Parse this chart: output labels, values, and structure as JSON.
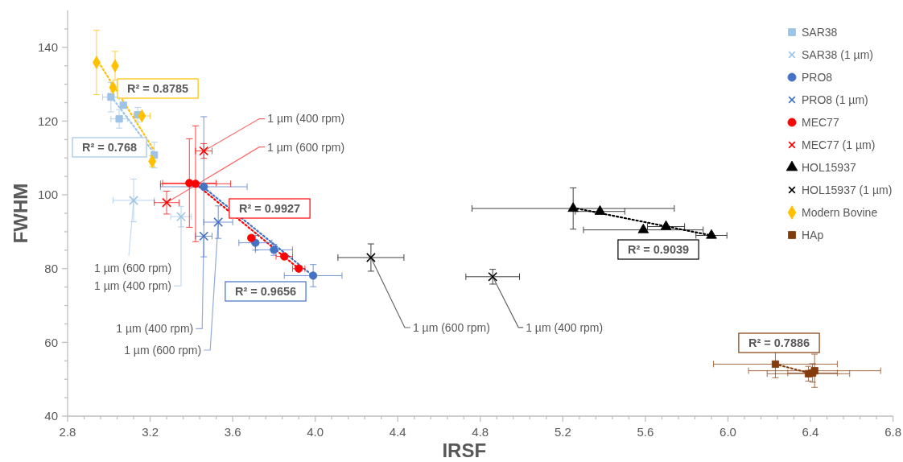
{
  "chart_data": {
    "type": "scatter",
    "xlabel": "IRSF",
    "ylabel": "FWHM",
    "xlim": [
      2.8,
      6.8
    ],
    "ylim": [
      40,
      150
    ],
    "xticks": [
      {
        "value": 2.8,
        "label": "2.8"
      },
      {
        "value": 2.88,
        "label": null
      },
      {
        "value": 2.96,
        "label": null
      },
      {
        "value": 3.04,
        "label": null
      },
      {
        "value": 3.12,
        "label": null
      },
      {
        "value": 3.2,
        "label": "3.2"
      },
      {
        "value": 3.28,
        "label": null
      },
      {
        "value": 3.36,
        "label": null
      },
      {
        "value": 3.44,
        "label": null
      },
      {
        "value": 3.52,
        "label": null
      },
      {
        "value": 3.6,
        "label": "3.6"
      },
      {
        "value": 3.68,
        "label": null
      },
      {
        "value": 3.76,
        "label": null
      },
      {
        "value": 3.84,
        "label": null
      },
      {
        "value": 3.92,
        "label": null
      },
      {
        "value": 4.0,
        "label": "4.0"
      },
      {
        "value": 4.08,
        "label": null
      },
      {
        "value": 4.16,
        "label": null
      },
      {
        "value": 4.24,
        "label": null
      },
      {
        "value": 4.32,
        "label": null
      },
      {
        "value": 4.4,
        "label": "4.4"
      },
      {
        "value": 4.48,
        "label": null
      },
      {
        "value": 4.56,
        "label": null
      },
      {
        "value": 4.64,
        "label": null
      },
      {
        "value": 4.72,
        "label": null
      },
      {
        "value": 4.8,
        "label": "4.8"
      },
      {
        "value": 4.88,
        "label": null
      },
      {
        "value": 4.96,
        "label": null
      },
      {
        "value": 5.04,
        "label": null
      },
      {
        "value": 5.12,
        "label": null
      },
      {
        "value": 5.2,
        "label": "5.2"
      },
      {
        "value": 5.28,
        "label": null
      },
      {
        "value": 5.36,
        "label": null
      },
      {
        "value": 5.44,
        "label": null
      },
      {
        "value": 5.52,
        "label": null
      },
      {
        "value": 5.6,
        "label": "5.6"
      },
      {
        "value": 5.68,
        "label": null
      },
      {
        "value": 5.76,
        "label": null
      },
      {
        "value": 5.84,
        "label": null
      },
      {
        "value": 5.92,
        "label": null
      },
      {
        "value": 6.0,
        "label": "6.0"
      },
      {
        "value": 6.08,
        "label": null
      },
      {
        "value": 6.16,
        "label": null
      },
      {
        "value": 6.24,
        "label": null
      },
      {
        "value": 6.32,
        "label": null
      },
      {
        "value": 6.4,
        "label": "6.4"
      },
      {
        "value": 6.48,
        "label": null
      },
      {
        "value": 6.56,
        "label": null
      },
      {
        "value": 6.64,
        "label": null
      },
      {
        "value": 6.72,
        "label": null
      },
      {
        "value": 6.8,
        "label": "6.8"
      }
    ],
    "yticks": [
      40,
      {
        "value": 45,
        "label": null
      },
      {
        "value": 50,
        "label": null
      },
      {
        "value": 55,
        "label": null
      },
      60,
      {
        "value": 65,
        "label": null
      },
      {
        "value": 70,
        "label": null
      },
      {
        "value": 75,
        "label": null
      },
      80,
      {
        "value": 85,
        "label": null
      },
      {
        "value": 90,
        "label": null
      },
      {
        "value": 95,
        "label": null
      },
      100,
      {
        "value": 105,
        "label": null
      },
      {
        "value": 110,
        "label": null
      },
      {
        "value": 115,
        "label": null
      },
      120,
      {
        "value": 125,
        "label": null
      },
      {
        "value": 130,
        "label": null
      },
      {
        "value": 135,
        "label": null
      },
      140,
      {
        "value": 145,
        "label": null
      }
    ],
    "grid": false,
    "legend": "top right",
    "series": [
      {
        "name": "SAR38",
        "color": "#9dc3e6",
        "marker": "square",
        "x": [
          3.01,
          3.05,
          3.07,
          3.14,
          3.22
        ],
        "values": [
          126.5,
          120.6,
          124.3,
          121.7,
          110.8
        ],
        "errors": [
          4,
          2.5,
          null,
          2,
          3.5
        ],
        "xerrors": [
          0.04,
          0.04,
          null,
          null,
          null
        ]
      },
      {
        "name": "SAR38 (1 µm)",
        "color": "#9dc3e6",
        "marker": "cross",
        "x": [
          3.12,
          3.35
        ],
        "values": [
          98.5,
          94.1
        ],
        "errors": [
          5.8,
          2.8
        ],
        "xerrors": [
          0.1,
          0.05
        ]
      },
      {
        "name": "PRO8",
        "color": "#4472c4",
        "marker": "circle",
        "x": [
          3.46,
          3.71,
          3.8,
          3.99
        ],
        "values": [
          102.2,
          87.0,
          85.1,
          78.1
        ],
        "errors": [
          19,
          2,
          1.5,
          3
        ],
        "xerrors": [
          0.21,
          0.08,
          0.09,
          0.14
        ]
      },
      {
        "name": "PRO8 (1 µm)",
        "color": "#4472c4",
        "marker": "cross",
        "x": [
          3.46,
          3.53
        ],
        "values": [
          88.8,
          92.6
        ],
        "errors": [
          null,
          4.4
        ],
        "xerrors": [
          0.04,
          0.07
        ]
      },
      {
        "name": "MEC77",
        "color": "#ff0000",
        "marker": "circle",
        "x": [
          3.39,
          3.42,
          3.69,
          3.85,
          3.92
        ],
        "values": [
          103.2,
          103.0,
          88.3,
          83.3,
          80.0
        ],
        "errors": [
          12,
          15.7,
          null,
          null,
          null
        ],
        "xerrors": [
          0.13,
          0.17,
          null,
          0.04,
          0.03
        ]
      },
      {
        "name": "MEC77 (1 µm)",
        "color": "#ff0000",
        "marker": "cross",
        "x": [
          3.46,
          3.28
        ],
        "values": [
          111.9,
          97.9
        ],
        "errors": [
          2,
          3.1
        ],
        "xerrors": [
          0.04,
          0.06
        ]
      },
      {
        "name": "HOL15937",
        "color": "#000000",
        "marker": "triangle",
        "x": [
          5.25,
          5.38,
          5.59,
          5.7,
          5.92
        ],
        "values": [
          96.3,
          95.5,
          90.5,
          91.4,
          89.0
        ],
        "errors": [
          5.6,
          null,
          null,
          null,
          null
        ],
        "xerrors": [
          0.49,
          0.12,
          0.29,
          0.09,
          0.075
        ]
      },
      {
        "name": "HOL15937 (1 µm)",
        "color": "#000000",
        "marker": "cross",
        "x": [
          4.27,
          4.86
        ],
        "values": [
          83.0,
          77.8
        ],
        "errors": [
          3.7,
          2
        ],
        "xerrors": [
          0.16,
          0.13
        ]
      },
      {
        "name": "Modern Bovine",
        "color": "#ffc000",
        "marker": "diamond",
        "x": [
          2.94,
          3.03,
          3.02,
          3.16,
          3.21
        ],
        "values": [
          135.9,
          135.0,
          129.1,
          121.4,
          109.1
        ],
        "errors": [
          8.7,
          3.9,
          null,
          null,
          1.5
        ],
        "xerrors": [
          null,
          null,
          null,
          0.04,
          null
        ]
      },
      {
        "name": "HAp",
        "color": "#843c0c",
        "marker": "square",
        "x": [
          6.23,
          6.39,
          6.41,
          6.42
        ],
        "values": [
          54.1,
          51.5,
          51.7,
          52.3
        ],
        "errors": [
          3.7,
          2,
          2.5,
          4.5
        ],
        "xerrors": [
          0.3,
          0.2,
          0.12,
          0.32
        ]
      },
      {
        "type": "line",
        "color": "#9dc3e6",
        "line_style": "dotted",
        "x": [
          3.0,
          3.23
        ],
        "values": [
          127.5,
          110.5
        ]
      },
      {
        "type": "line",
        "color": "#ffc000",
        "line_style": "dotted",
        "x": [
          2.95,
          3.22
        ],
        "values": [
          136,
          112
        ]
      },
      {
        "type": "line",
        "color": "#4472c4",
        "line_style": "dotted",
        "x": [
          3.46,
          3.99
        ],
        "values": [
          102,
          78
        ]
      },
      {
        "type": "line",
        "color": "#ff0000",
        "line_style": "dotted",
        "x": [
          3.42,
          3.92
        ],
        "values": [
          103,
          80
        ]
      },
      {
        "type": "line",
        "color": "#000000",
        "line_style": "dotted",
        "x": [
          5.25,
          5.92
        ],
        "values": [
          96.5,
          89
        ]
      },
      {
        "type": "line",
        "color": "#843c0c",
        "line_style": "dotted",
        "x": [
          6.23,
          6.4
        ],
        "values": [
          54.1,
          51.6
        ]
      }
    ],
    "annotations": [
      "R² = 0.8785",
      "R² = 0.768",
      "R² = 0.9927",
      "R² = 0.9656",
      "R² = 0.9039",
      "R² = 0.7886",
      {
        "text": "1 µm (400 rpm)",
        "x": 3.46,
        "y": 111.9
      },
      {
        "text": "1 µm (600 rpm)",
        "x": 3.28,
        "y": 97.9
      },
      {
        "text": "1 µm (600 rpm)",
        "x": 3.12,
        "y": 98.5
      },
      {
        "text": "1 µm (400 rpm)",
        "x": 3.35,
        "y": 94.1
      },
      {
        "text": "1 µm (400 rpm)",
        "x": 3.46,
        "y": 88.8
      },
      {
        "text": "1 µm (600 rpm)",
        "x": 3.53,
        "y": 92.6
      },
      {
        "text": "1 µm (600 rpm)",
        "x": 4.27,
        "y": 83.0
      },
      {
        "text": "1 µm (400 rpm)",
        "x": 4.86,
        "y": 77.8
      }
    ]
  }
}
